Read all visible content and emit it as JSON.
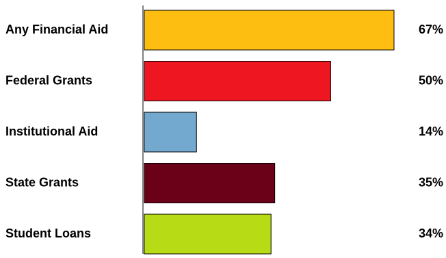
{
  "chart_data": {
    "type": "bar",
    "orientation": "horizontal",
    "categories": [
      "Any Financial Aid",
      "Federal Grants",
      "Institutional Aid",
      "State Grants",
      "Student Loans"
    ],
    "values": [
      67,
      50,
      14,
      35,
      34
    ],
    "value_labels": [
      "67%",
      "50%",
      "14%",
      "35%",
      "34%"
    ],
    "colors": [
      "#FDBD11",
      "#EE1620",
      "#74A9CF",
      "#6B0019",
      "#B7DB15"
    ],
    "unit": "%",
    "xlim": [
      0,
      67
    ],
    "grid": false,
    "legend": "none"
  }
}
